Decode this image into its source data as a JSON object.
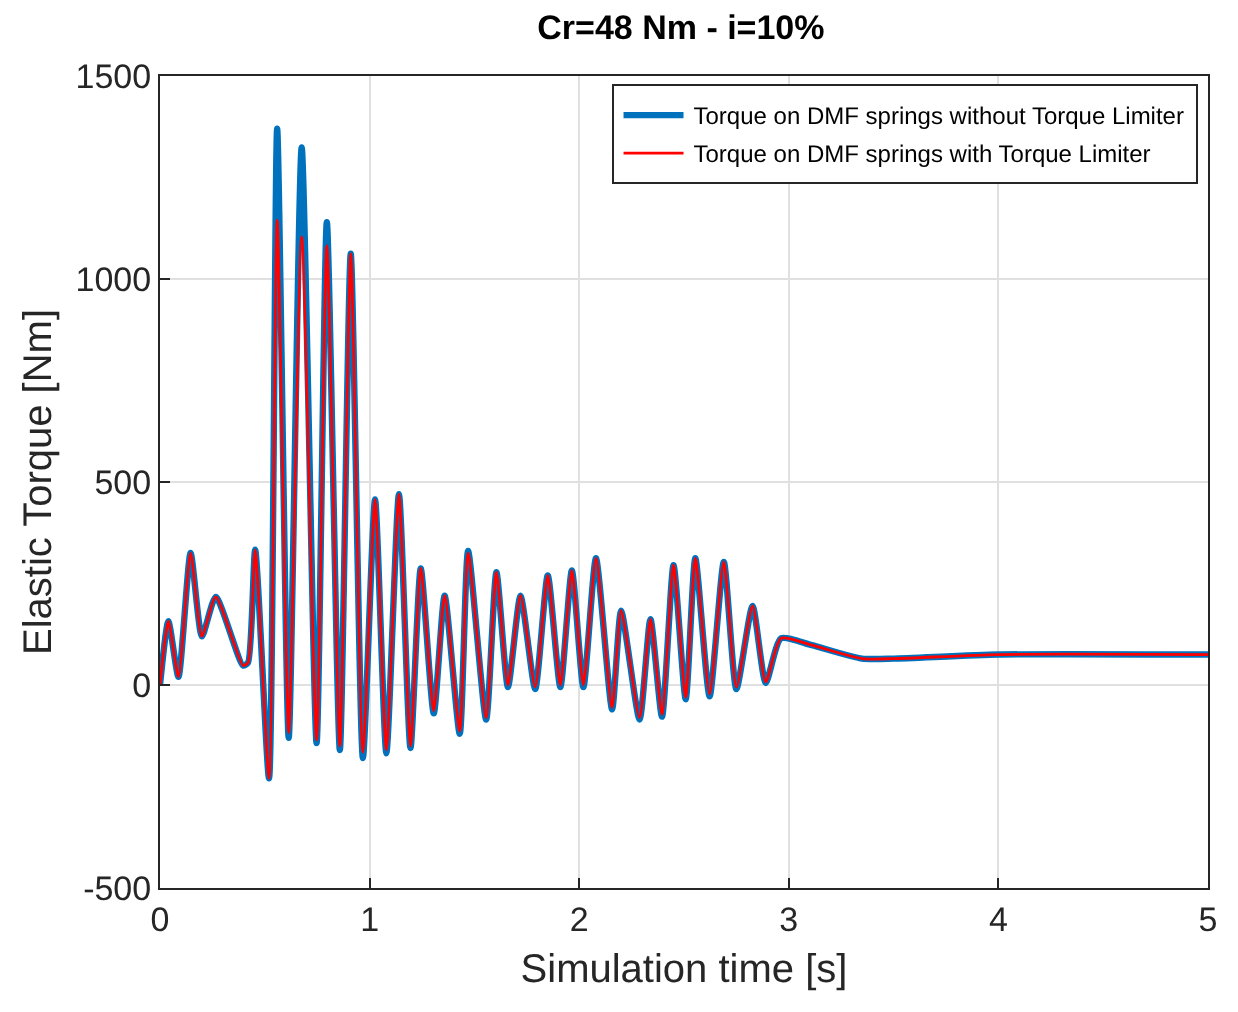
{
  "chart_data": {
    "type": "line",
    "title": "Cr=48 Nm - i=10%",
    "xlabel": "Simulation time [s]",
    "ylabel": "Elastic Torque [Nm]",
    "x": [
      0,
      0.04,
      0.088,
      0.146,
      0.2,
      0.266,
      0.396,
      0.42,
      0.454,
      0.52,
      0.559,
      0.614,
      0.676,
      0.747,
      0.796,
      0.858,
      0.91,
      0.968,
      1.026,
      1.08,
      1.14,
      1.195,
      1.244,
      1.306,
      1.358,
      1.43,
      1.47,
      1.556,
      1.605,
      1.66,
      1.72,
      1.79,
      1.85,
      1.91,
      1.965,
      2.02,
      2.08,
      2.157,
      2.2,
      2.288,
      2.34,
      2.395,
      2.45,
      2.508,
      2.554,
      2.622,
      2.69,
      2.75,
      2.827,
      2.89,
      2.963,
      3.11,
      3.35,
      3.5,
      4,
      5
    ],
    "series": [
      {
        "name": "Torque on DMF springs without Torque Limiter",
        "color": "#0072bd",
        "values": [
          0,
          157,
          20,
          325,
          120,
          217,
          48,
          55,
          333,
          -230,
          1370,
          -130,
          1324,
          -143,
          1140,
          -160,
          1062,
          -180,
          457,
          -168,
          470,
          -155,
          287,
          -70,
          220,
          -120,
          330,
          -85,
          278,
          -5,
          220,
          -10,
          270,
          -5,
          282,
          -5,
          312,
          -60,
          183,
          -85,
          162,
          -78,
          295,
          -35,
          312,
          -28,
          303,
          -10,
          195,
          5,
          115,
          98,
          65,
          65,
          75,
          75
        ]
      },
      {
        "name": "Torque on DMF springs with Torque Limiter",
        "color": "#ff0000",
        "values": [
          0,
          157,
          20,
          325,
          120,
          217,
          48,
          55,
          333,
          -230,
          1145,
          -117,
          1104,
          -135,
          1082,
          -150,
          1062,
          -165,
          457,
          -160,
          470,
          -150,
          287,
          -63,
          220,
          -113,
          325,
          -80,
          278,
          0,
          220,
          -5,
          270,
          0,
          282,
          0,
          312,
          -55,
          183,
          -80,
          162,
          -72,
          295,
          -30,
          312,
          -22,
          303,
          -5,
          195,
          8,
          115,
          98,
          65,
          65,
          75,
          75
        ]
      }
    ],
    "xlim": [
      0,
      5
    ],
    "xticks": [
      0,
      1,
      2,
      3,
      4,
      5
    ],
    "ylim": [
      -500,
      1500
    ],
    "yticks": [
      -500,
      0,
      500,
      1000,
      1500
    ],
    "grid": true,
    "legend": "top right",
    "line_style": "solid",
    "marker": "none"
  }
}
